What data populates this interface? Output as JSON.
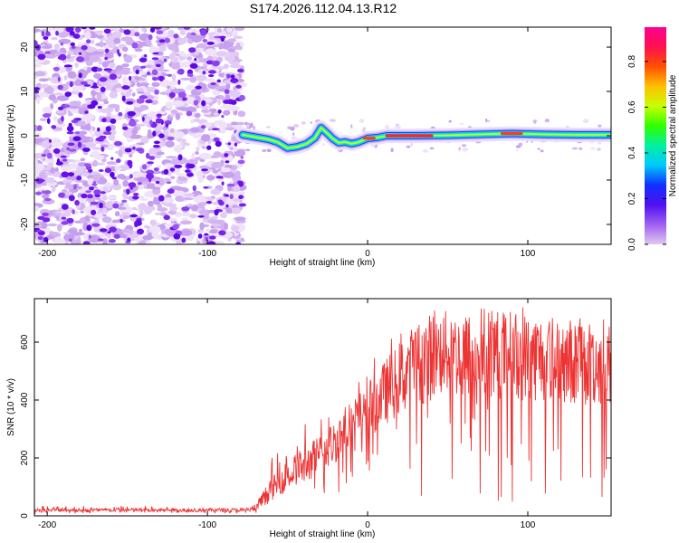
{
  "title": "S174.2026.112.04.13.R12",
  "chart_data": [
    {
      "type": "heatmap",
      "xlabel": "Height of straight line (km)",
      "ylabel": "Frequency (Hz)",
      "xlim": [
        -208,
        152
      ],
      "ylim": [
        -24.5,
        24.5
      ],
      "xticks": [
        -200,
        -100,
        0,
        100
      ],
      "xtick_labels": [
        "-200",
        "-100",
        "0",
        "100"
      ],
      "yticks": [
        -20,
        -10,
        0,
        10,
        20
      ],
      "ytick_labels": [
        "-20",
        "-10",
        "0",
        "10",
        "20"
      ],
      "noise_region_x": [
        -208,
        -78
      ],
      "signal_track": {
        "x": [
          -78,
          -70,
          -62,
          -56,
          -50,
          -44,
          -38,
          -33,
          -29,
          -25,
          -22,
          -18,
          -14,
          -10,
          -6,
          0,
          6,
          12,
          30,
          50,
          70,
          90,
          110,
          130,
          152
        ],
        "y": [
          0.2,
          -0.3,
          -0.8,
          -1.5,
          -2.8,
          -2.5,
          -1.8,
          -0.5,
          1.8,
          0.5,
          -0.6,
          -1.6,
          -1.4,
          -1.8,
          -1.5,
          -0.6,
          -0.4,
          0.0,
          0.0,
          0.1,
          0.3,
          0.5,
          0.3,
          0.2,
          0.2
        ]
      },
      "colorbar": {
        "label": "Normalized spectral amplitude",
        "range": [
          0,
          0.95
        ],
        "ticks": [
          0.0,
          0.2,
          0.4,
          0.6,
          0.8
        ],
        "tick_labels": [
          "0.0",
          "0.2",
          "0.4",
          "0.6",
          "0.8"
        ],
        "colors": [
          "#e0c8f0",
          "#a060f0",
          "#5010f0",
          "#1030ff",
          "#00c8ff",
          "#00f0a0",
          "#30ff00",
          "#c8ff00",
          "#ffc000",
          "#ff5000",
          "#ff1050",
          "#ff0090"
        ]
      }
    },
    {
      "type": "line",
      "xlabel": "Height of straight line (km)",
      "ylabel": "SNR (10 * v/v)",
      "xlim": [
        -208,
        152
      ],
      "ylim": [
        0,
        750
      ],
      "xticks": [
        -200,
        -100,
        0,
        100
      ],
      "xtick_labels": [
        "-200",
        "-100",
        "0",
        "100"
      ],
      "yticks": [
        0,
        200,
        400,
        600
      ],
      "ytick_labels": [
        "0",
        "200",
        "400",
        "600"
      ],
      "series": [
        {
          "name": "SNR",
          "color": "#ee3333",
          "envelope_x": [
            -208,
            -80,
            -70,
            -65,
            -55,
            -45,
            -35,
            -25,
            -15,
            -5,
            5,
            15,
            25,
            35,
            45,
            60,
            80,
            100,
            120,
            140,
            152
          ],
          "envelope_mean": [
            20,
            20,
            22,
            60,
            120,
            160,
            190,
            230,
            290,
            340,
            390,
            450,
            500,
            540,
            560,
            555,
            560,
            550,
            540,
            530,
            520
          ],
          "envelope_max": [
            35,
            38,
            40,
            170,
            240,
            310,
            360,
            400,
            450,
            500,
            550,
            620,
            680,
            720,
            720,
            700,
            740,
            730,
            720,
            700,
            680
          ],
          "envelope_min": [
            8,
            8,
            8,
            30,
            40,
            60,
            60,
            70,
            80,
            90,
            100,
            80,
            70,
            50,
            40,
            40,
            40,
            40,
            40,
            40,
            40
          ]
        }
      ]
    }
  ]
}
